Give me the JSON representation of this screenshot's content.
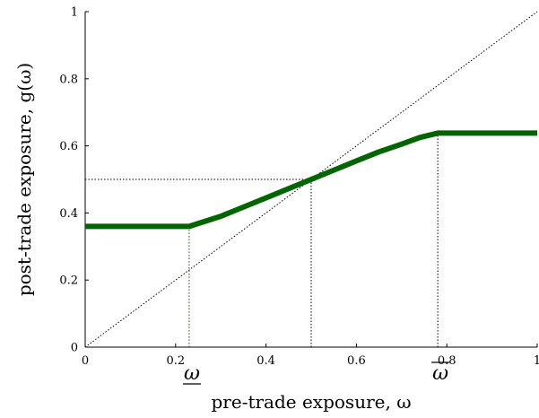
{
  "chart_data": {
    "type": "line",
    "title": "",
    "xlabel": "pre-trade exposure, ω",
    "ylabel": "post-trade exposure, g(ω)",
    "xlim": [
      0,
      1
    ],
    "ylim": [
      0,
      1
    ],
    "x_ticks": [
      "0",
      "0.2",
      "0.4",
      "0.6",
      "0.8",
      "1"
    ],
    "y_ticks": [
      "0",
      "0.2",
      "0.4",
      "0.6",
      "0.8",
      "1"
    ],
    "grid": false,
    "series": [
      {
        "color": "#006400",
        "x": [
          0,
          0.23,
          0.3,
          0.4,
          0.5,
          0.6,
          0.65,
          0.7,
          0.74,
          0.78,
          1.0
        ],
        "y": [
          0.36,
          0.36,
          0.39,
          0.445,
          0.5,
          0.555,
          0.582,
          0.605,
          0.625,
          0.638,
          0.638
        ]
      }
    ],
    "reference_lines": {
      "diagonal": {
        "x": [
          0,
          1
        ],
        "y": [
          0,
          1
        ],
        "style": "dotted"
      },
      "verticals": [
        {
          "x": 0.23,
          "y_top": 0.36,
          "color": "#006400"
        },
        {
          "x": 0.5,
          "y_top": 0.5,
          "color": "#000000"
        },
        {
          "x": 0.78,
          "y_top": 0.638,
          "color": "#000000"
        }
      ],
      "horizontal": {
        "y": 0.5,
        "x_end": 0.5
      }
    },
    "omega_markers": [
      {
        "x": 0.23,
        "label": "ω",
        "bar": "under"
      },
      {
        "x": 0.78,
        "label": "ω",
        "bar": "over"
      }
    ]
  }
}
